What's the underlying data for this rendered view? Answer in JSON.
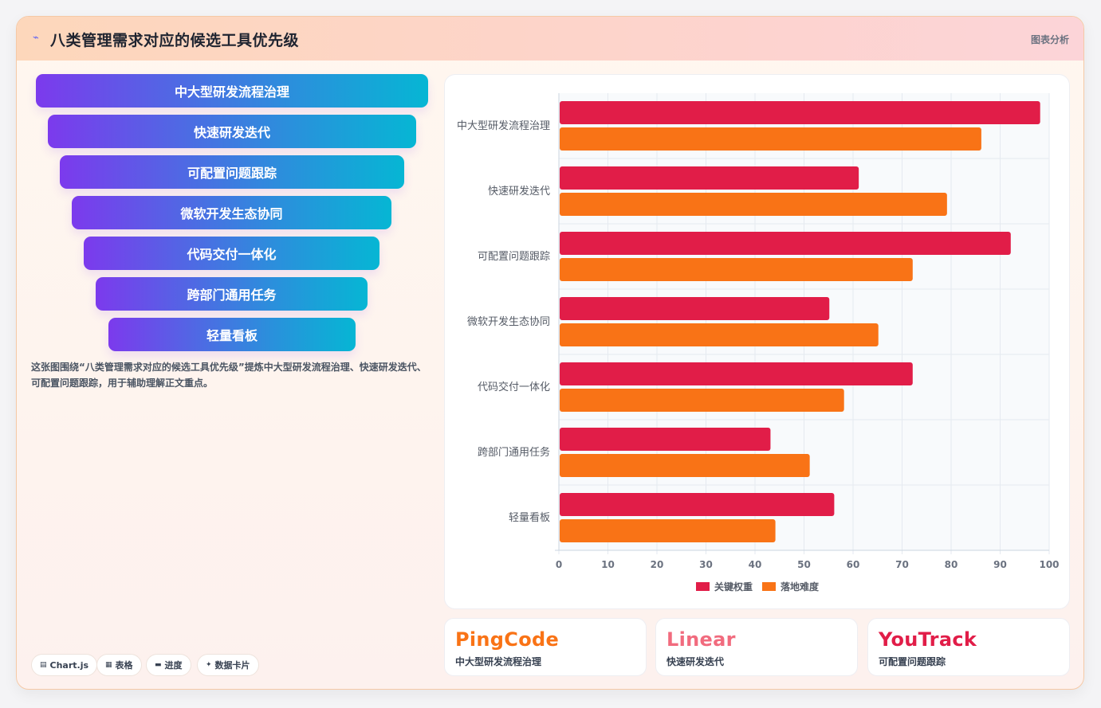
{
  "header": {
    "icon": "wave-icon",
    "title": "八类管理需求对应的候选工具优先级",
    "link_label": "图表分析"
  },
  "funnel": {
    "steps": [
      "中大型研发流程治理",
      "快速研发迭代",
      "可配置问题跟踪",
      "微软开发生态协同",
      "代码交付一体化",
      "跨部门通用任务",
      "轻量看板"
    ]
  },
  "description": "这张图围绕“八类管理需求对应的候选工具优先级”提炼中大型研发流程治理、快速研发迭代、可配置问题跟踪，用于辅助理解正文重点。",
  "tags": [
    {
      "icon": "chart-icon",
      "label": "Chart.js"
    },
    {
      "icon": "table-icon",
      "label": "表格"
    },
    {
      "icon": "progress-icon",
      "label": "进度"
    },
    {
      "icon": "card-icon",
      "label": "数据卡片"
    }
  ],
  "chart_data": {
    "type": "bar",
    "orientation": "horizontal",
    "categories": [
      "中大型研发流程治理",
      "快速研发迭代",
      "可配置问题跟踪",
      "微软开发生态协同",
      "代码交付一体化",
      "跨部门通用任务",
      "轻量看板"
    ],
    "series": [
      {
        "name": "关键权重",
        "color": "#e11d48",
        "values": [
          98,
          61,
          92,
          55,
          72,
          43,
          56
        ]
      },
      {
        "name": "落地难度",
        "color": "#f97316",
        "values": [
          86,
          79,
          72,
          65,
          58,
          51,
          44
        ]
      }
    ],
    "xlim": [
      0,
      100
    ],
    "xticks": [
      0,
      10,
      20,
      30,
      40,
      50,
      60,
      70,
      80,
      90,
      100
    ],
    "grid": true,
    "legend": "bottom"
  },
  "stats": [
    {
      "name": "PingCode",
      "sub": "中大型研发流程治理",
      "color": "#f97316"
    },
    {
      "name": "Linear",
      "sub": "快速研发迭代",
      "color": "#f16b7e"
    },
    {
      "name": "YouTrack",
      "sub": "可配置问题跟踪",
      "color": "#e11d48"
    }
  ]
}
